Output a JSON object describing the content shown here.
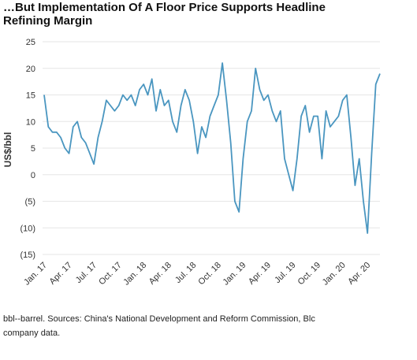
{
  "chart_data": {
    "type": "line",
    "title": [
      "…But Implementation Of A Floor Price Supports Headline",
      "Refining Margin"
    ],
    "y_label": "US$/bbl",
    "footnote": [
      "bbl--barrel. Sources: China's National Development and Reform Commission, Blc",
      "company data."
    ],
    "categories": [
      "Jan. 17",
      null,
      null,
      null,
      null,
      null,
      "Apr. 17",
      null,
      null,
      null,
      null,
      null,
      "Jul. 17",
      null,
      null,
      null,
      null,
      null,
      "Oct. 17",
      null,
      null,
      null,
      null,
      null,
      "Jan. 18",
      null,
      null,
      null,
      null,
      null,
      "Apr. 18",
      null,
      null,
      null,
      null,
      null,
      "Jul. 18",
      null,
      null,
      null,
      null,
      null,
      "Oct. 18",
      null,
      null,
      null,
      null,
      null,
      "Jan. 19",
      null,
      null,
      null,
      null,
      null,
      "Apr. 19",
      null,
      null,
      null,
      null,
      null,
      "Jul. 19",
      null,
      null,
      null,
      null,
      null,
      "Oct. 19",
      null,
      null,
      null,
      null,
      null,
      "Jan. 20",
      null,
      null,
      null,
      null,
      null,
      "Apr. 20",
      null,
      null,
      null
    ],
    "series": [
      {
        "name": "Refining margin",
        "color": "#4a96c0",
        "values": [
          15,
          9,
          8,
          8,
          7,
          5,
          4,
          9,
          10,
          7,
          6,
          4,
          2,
          7,
          10,
          14,
          13,
          12,
          13,
          15,
          14,
          15,
          13,
          16,
          17,
          15,
          18,
          12,
          16,
          13,
          14,
          10,
          8,
          13,
          16,
          14,
          10,
          4,
          9,
          7,
          11,
          13,
          15,
          21,
          14,
          6,
          -5,
          -7,
          3,
          10,
          12,
          20,
          16,
          14,
          15,
          12,
          10,
          12,
          3,
          0,
          -3,
          3,
          11,
          13,
          8,
          11,
          11,
          3,
          12,
          9,
          10,
          11,
          14,
          15,
          7,
          -2,
          3,
          -5,
          -11,
          4,
          17,
          19
        ]
      }
    ],
    "ylim": [
      -15,
      25
    ],
    "yticks": [
      {
        "value": -15,
        "label": "(15)"
      },
      {
        "value": -10,
        "label": "(10)"
      },
      {
        "value": -5,
        "label": "(5)"
      },
      0,
      5,
      10,
      15,
      20,
      25
    ],
    "grid": true
  }
}
